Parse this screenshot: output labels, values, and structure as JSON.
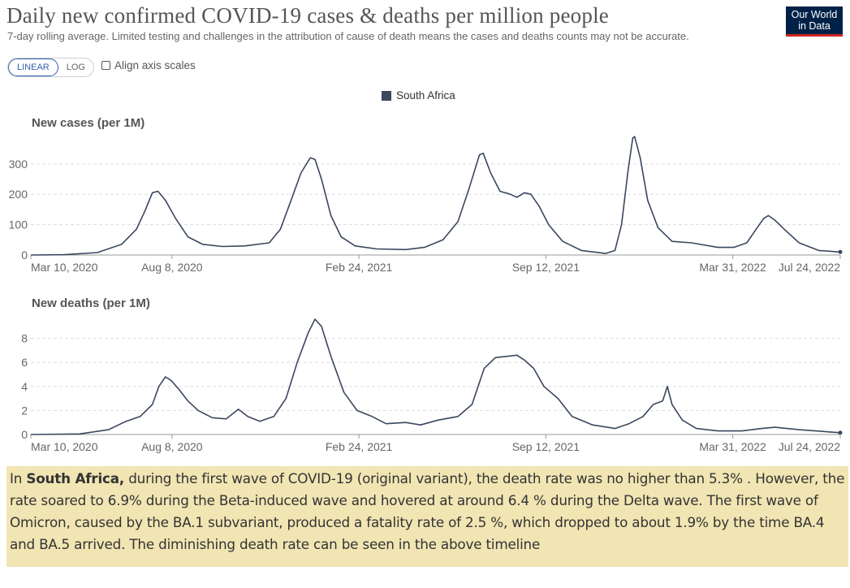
{
  "header": {
    "title": "Daily new confirmed COVID-19 cases & deaths per million people",
    "subtitle": "7-day rolling average. Limited testing and challenges in the attribution of cause of death means the cases and deaths counts may not be accurate.",
    "logo_line1": "Our World",
    "logo_line2": "in Data"
  },
  "controls": {
    "scale_linear": "LINEAR",
    "scale_log": "LOG",
    "scale_selected": "LINEAR",
    "align_label": "Align axis scales",
    "align_checked": false
  },
  "colors": {
    "series": "#3a475f",
    "grid": "#dddddd",
    "accent": "#3360a9"
  },
  "annotation": {
    "prefix": "In ",
    "country": "South Africa,",
    "text": " during the first wave of COVID-19 (original variant), the death rate was no higher than 5.3% . However, the rate soared to 6.9% during the Beta-induced wave and hovered at around 6.4 % during the Delta wave. The first wave of Omicron, caused by the BA.1 subvariant, produced a fatality rate of 2.5 %, which dropped to about 1.9% by the time BA.4 and BA.5 arrived. The diminishing death rate can be seen in the above timeline"
  },
  "chart_data": [
    {
      "type": "line",
      "title": "New cases (per 1M)",
      "legend": [
        "South Africa"
      ],
      "legend_position": "top-center",
      "grid": true,
      "x_range": [
        "2020-03-10",
        "2022-07-24"
      ],
      "x_ticks": [
        {
          "date": "2020-03-10",
          "label": "Mar 10, 2020"
        },
        {
          "date": "2020-08-08",
          "label": "Aug 8, 2020"
        },
        {
          "date": "2021-02-24",
          "label": "Feb 24, 2021"
        },
        {
          "date": "2021-09-12",
          "label": "Sep 12, 2021"
        },
        {
          "date": "2022-03-31",
          "label": "Mar 31, 2022"
        },
        {
          "date": "2022-07-24",
          "label": "Jul 24, 2022"
        }
      ],
      "y_ticks": [
        0,
        100,
        200,
        300
      ],
      "ylim": [
        0,
        385
      ],
      "series": [
        {
          "name": "South Africa",
          "points": [
            [
              "2020-03-10",
              0
            ],
            [
              "2020-04-15",
              1
            ],
            [
              "2020-05-20",
              8
            ],
            [
              "2020-06-15",
              35
            ],
            [
              "2020-07-01",
              85
            ],
            [
              "2020-07-10",
              145
            ],
            [
              "2020-07-18",
              205
            ],
            [
              "2020-07-24",
              210
            ],
            [
              "2020-08-01",
              180
            ],
            [
              "2020-08-12",
              120
            ],
            [
              "2020-08-25",
              60
            ],
            [
              "2020-09-10",
              35
            ],
            [
              "2020-10-01",
              28
            ],
            [
              "2020-10-25",
              30
            ],
            [
              "2020-11-20",
              40
            ],
            [
              "2020-12-02",
              85
            ],
            [
              "2020-12-14",
              185
            ],
            [
              "2020-12-24",
              270
            ],
            [
              "2021-01-03",
              320
            ],
            [
              "2021-01-08",
              315
            ],
            [
              "2021-01-15",
              250
            ],
            [
              "2021-01-25",
              130
            ],
            [
              "2021-02-05",
              60
            ],
            [
              "2021-02-20",
              30
            ],
            [
              "2021-03-15",
              20
            ],
            [
              "2021-04-15",
              18
            ],
            [
              "2021-05-05",
              25
            ],
            [
              "2021-05-25",
              50
            ],
            [
              "2021-06-10",
              110
            ],
            [
              "2021-06-22",
              220
            ],
            [
              "2021-07-03",
              330
            ],
            [
              "2021-07-07",
              335
            ],
            [
              "2021-07-15",
              270
            ],
            [
              "2021-07-25",
              210
            ],
            [
              "2021-08-05",
              200
            ],
            [
              "2021-08-12",
              190
            ],
            [
              "2021-08-20",
              205
            ],
            [
              "2021-08-27",
              200
            ],
            [
              "2021-09-05",
              160
            ],
            [
              "2021-09-15",
              100
            ],
            [
              "2021-09-30",
              45
            ],
            [
              "2021-10-20",
              15
            ],
            [
              "2021-11-15",
              5
            ],
            [
              "2021-11-25",
              15
            ],
            [
              "2021-12-02",
              100
            ],
            [
              "2021-12-09",
              280
            ],
            [
              "2021-12-14",
              385
            ],
            [
              "2021-12-16",
              390
            ],
            [
              "2021-12-22",
              320
            ],
            [
              "2021-12-30",
              180
            ],
            [
              "2022-01-10",
              90
            ],
            [
              "2022-01-25",
              45
            ],
            [
              "2022-02-15",
              40
            ],
            [
              "2022-03-15",
              25
            ],
            [
              "2022-04-01",
              25
            ],
            [
              "2022-04-15",
              40
            ],
            [
              "2022-04-25",
              85
            ],
            [
              "2022-05-03",
              120
            ],
            [
              "2022-05-08",
              130
            ],
            [
              "2022-05-15",
              115
            ],
            [
              "2022-05-25",
              85
            ],
            [
              "2022-06-10",
              40
            ],
            [
              "2022-07-01",
              15
            ],
            [
              "2022-07-24",
              10
            ]
          ]
        }
      ]
    },
    {
      "type": "line",
      "title": "New deaths (per 1M)",
      "legend": [
        "South Africa"
      ],
      "grid": true,
      "x_range": [
        "2020-03-10",
        "2022-07-24"
      ],
      "x_ticks": [
        {
          "date": "2020-03-10",
          "label": "Mar 10, 2020"
        },
        {
          "date": "2020-08-08",
          "label": "Aug 8, 2020"
        },
        {
          "date": "2021-02-24",
          "label": "Feb 24, 2021"
        },
        {
          "date": "2021-09-12",
          "label": "Sep 12, 2021"
        },
        {
          "date": "2022-03-31",
          "label": "Mar 31, 2022"
        },
        {
          "date": "2022-07-24",
          "label": "Jul 24, 2022"
        }
      ],
      "y_ticks": [
        0,
        2,
        4,
        6,
        8
      ],
      "ylim": [
        0,
        9.8
      ],
      "series": [
        {
          "name": "South Africa",
          "points": [
            [
              "2020-03-10",
              0
            ],
            [
              "2020-05-01",
              0.05
            ],
            [
              "2020-06-01",
              0.4
            ],
            [
              "2020-06-20",
              1.1
            ],
            [
              "2020-07-05",
              1.5
            ],
            [
              "2020-07-18",
              2.5
            ],
            [
              "2020-07-25",
              4.0
            ],
            [
              "2020-08-01",
              4.8
            ],
            [
              "2020-08-07",
              4.5
            ],
            [
              "2020-08-15",
              3.8
            ],
            [
              "2020-08-25",
              2.8
            ],
            [
              "2020-09-05",
              2.0
            ],
            [
              "2020-09-20",
              1.4
            ],
            [
              "2020-10-05",
              1.3
            ],
            [
              "2020-10-18",
              2.1
            ],
            [
              "2020-10-28",
              1.5
            ],
            [
              "2020-11-10",
              1.1
            ],
            [
              "2020-11-25",
              1.5
            ],
            [
              "2020-12-08",
              3.0
            ],
            [
              "2020-12-20",
              6.0
            ],
            [
              "2021-01-01",
              8.5
            ],
            [
              "2021-01-08",
              9.6
            ],
            [
              "2021-01-15",
              9.0
            ],
            [
              "2021-01-25",
              6.5
            ],
            [
              "2021-02-08",
              3.5
            ],
            [
              "2021-02-22",
              2.0
            ],
            [
              "2021-03-10",
              1.5
            ],
            [
              "2021-03-25",
              0.9
            ],
            [
              "2021-04-15",
              1.0
            ],
            [
              "2021-05-01",
              0.8
            ],
            [
              "2021-05-20",
              1.2
            ],
            [
              "2021-06-10",
              1.5
            ],
            [
              "2021-06-25",
              2.5
            ],
            [
              "2021-07-08",
              5.5
            ],
            [
              "2021-07-20",
              6.4
            ],
            [
              "2021-08-01",
              6.5
            ],
            [
              "2021-08-12",
              6.6
            ],
            [
              "2021-08-20",
              6.2
            ],
            [
              "2021-08-30",
              5.5
            ],
            [
              "2021-09-10",
              4.0
            ],
            [
              "2021-09-25",
              3.0
            ],
            [
              "2021-10-10",
              1.5
            ],
            [
              "2021-11-01",
              0.8
            ],
            [
              "2021-11-25",
              0.5
            ],
            [
              "2021-12-10",
              0.9
            ],
            [
              "2021-12-25",
              1.5
            ],
            [
              "2022-01-05",
              2.5
            ],
            [
              "2022-01-15",
              2.8
            ],
            [
              "2022-01-20",
              4.0
            ],
            [
              "2022-01-25",
              2.5
            ],
            [
              "2022-02-05",
              1.2
            ],
            [
              "2022-02-20",
              0.5
            ],
            [
              "2022-03-15",
              0.3
            ],
            [
              "2022-04-10",
              0.3
            ],
            [
              "2022-05-01",
              0.5
            ],
            [
              "2022-05-15",
              0.6
            ],
            [
              "2022-06-10",
              0.4
            ],
            [
              "2022-07-24",
              0.15
            ]
          ]
        }
      ]
    }
  ]
}
